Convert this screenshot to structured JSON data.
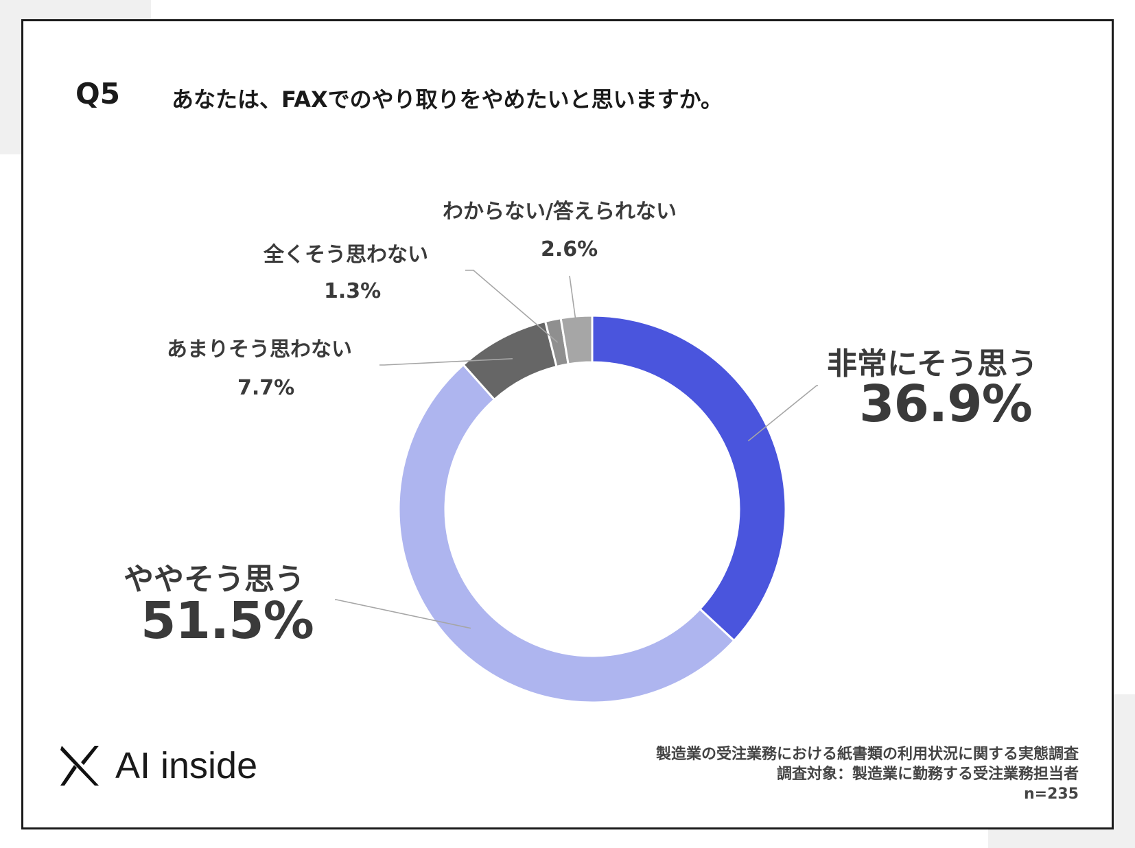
{
  "question": {
    "number": "Q5",
    "text": "あなたは、FAXでのやり取りをやめたいと思いますか。"
  },
  "chart_data": {
    "type": "pie",
    "donut": true,
    "categories": [
      "非常にそう思う",
      "ややそう思う",
      "あまりそう思わない",
      "全くそう思わない",
      "わからない/答えられない"
    ],
    "values": [
      36.9,
      51.5,
      7.7,
      1.3,
      2.6
    ],
    "value_labels": [
      "36.9%",
      "51.5%",
      "7.7%",
      "1.3%",
      "2.6%"
    ],
    "colors": [
      "#4a55dd",
      "#aeb5ef",
      "#666666",
      "#8f8f8f",
      "#a6a6a6"
    ]
  },
  "logo": {
    "text": "AI inside"
  },
  "footer": {
    "line1": "製造業の受注業務における紙書類の利用状況に関する実態調査",
    "line2": "調査対象：製造業に勤務する受注業務担当者",
    "line3": "n=235"
  }
}
